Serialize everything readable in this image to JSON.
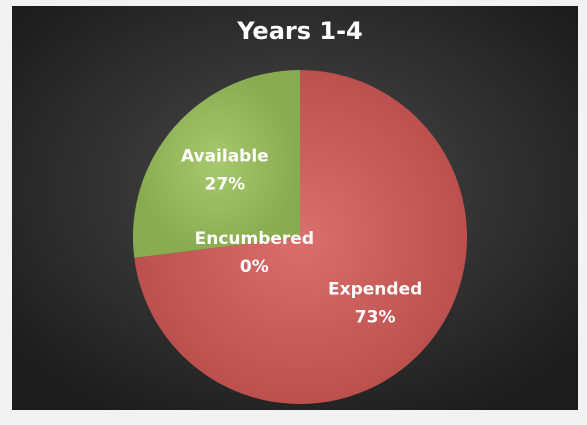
{
  "chart_data": {
    "type": "pie",
    "title": "Years 1-4",
    "categories": [
      "Expended",
      "Encumbered",
      "Available"
    ],
    "values": [
      73,
      0,
      27
    ],
    "value_labels": [
      "73%",
      "0%",
      "27%"
    ],
    "colors": [
      "#d55b58",
      "#4f81bd",
      "#9bc25a"
    ],
    "start_angle": 0,
    "direction": "clockwise"
  }
}
